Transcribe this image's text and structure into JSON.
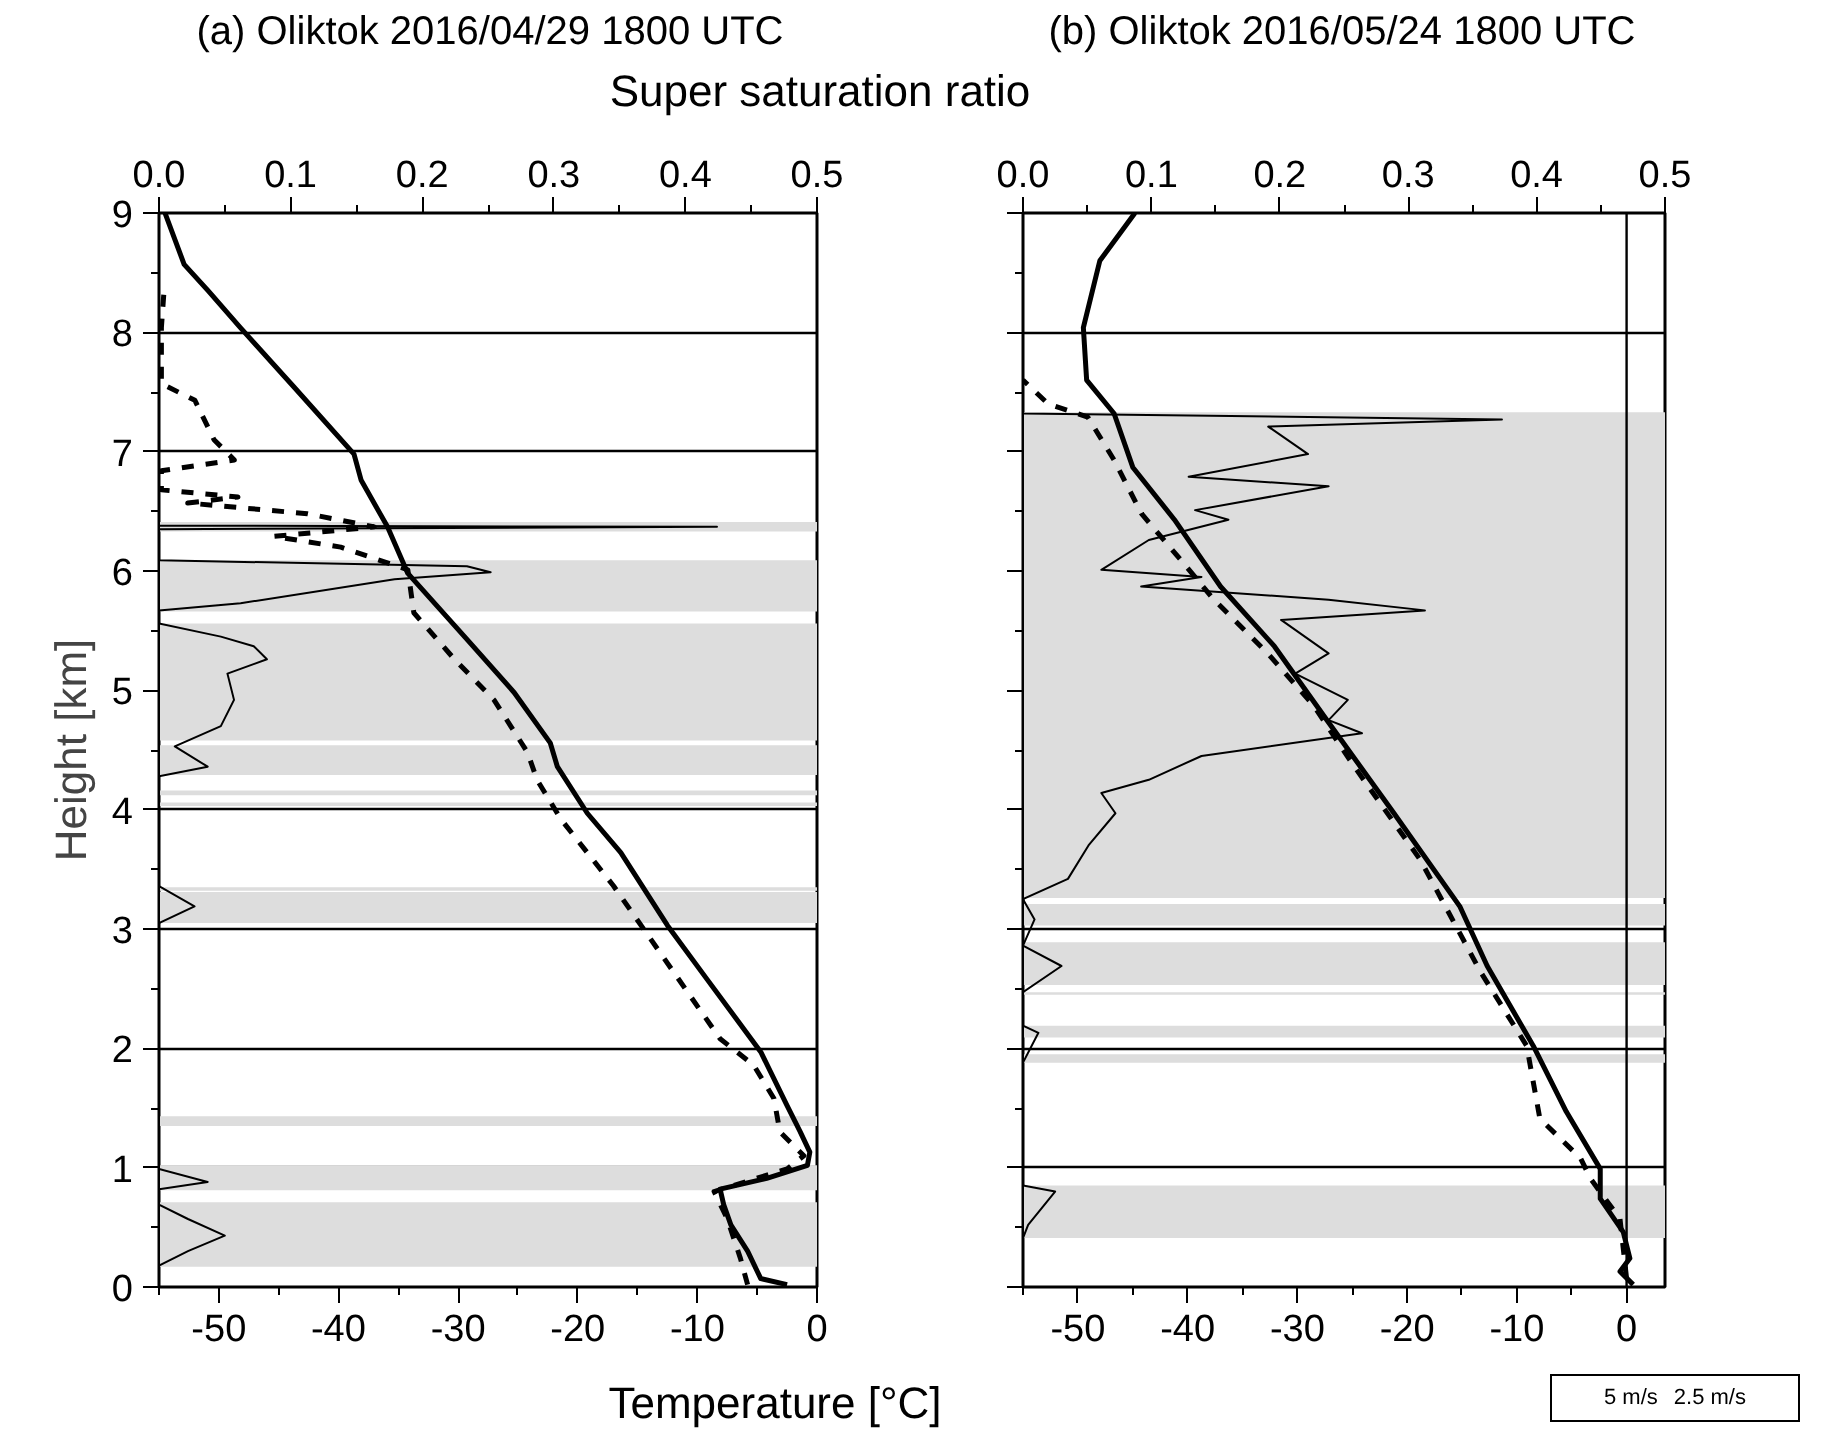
{
  "chart_data": [
    {
      "type": "line",
      "title": "(a) Oliktok 2016/04/29 1800 UTC",
      "xlabel": "Temperature [°C]",
      "x2label": "Super saturation ratio",
      "ylabel": "Height [km]",
      "xlim": [
        -55,
        0
      ],
      "xticks": [
        {
          "value": -55,
          "label": null
        },
        -50,
        {
          "value": -45,
          "label": null
        },
        -40,
        {
          "value": -35,
          "label": null
        },
        -30,
        {
          "value": -25,
          "label": null
        },
        -20,
        {
          "value": -15,
          "label": null
        },
        -10,
        {
          "value": -5,
          "label": null
        },
        0
      ],
      "x2lim": [
        0,
        0.5
      ],
      "x2ticks": [
        {
          "value": 0,
          "label": "0.0"
        },
        {
          "value": 0.05,
          "label": null
        },
        {
          "value": 0.1,
          "label": "0.1"
        },
        {
          "value": 0.15,
          "label": null
        },
        {
          "value": 0.2,
          "label": "0.2"
        },
        {
          "value": 0.25,
          "label": null
        },
        {
          "value": 0.3,
          "label": "0.3"
        },
        {
          "value": 0.35,
          "label": null
        },
        {
          "value": 0.4,
          "label": "0.4"
        },
        {
          "value": 0.45,
          "label": null
        },
        {
          "value": 0.5,
          "label": "0.5"
        }
      ],
      "ylim": [
        0,
        9
      ],
      "yticks": [
        0,
        {
          "value": 0.5,
          "label": null
        },
        1,
        {
          "value": 1.5,
          "label": null
        },
        2,
        {
          "value": 2.5,
          "label": null
        },
        3,
        {
          "value": 3.5,
          "label": null
        },
        4,
        {
          "value": 4.5,
          "label": null
        },
        5,
        {
          "value": 5.5,
          "label": null
        },
        6,
        {
          "value": 6.5,
          "label": null
        },
        7,
        {
          "value": 7.5,
          "label": null
        },
        8,
        {
          "value": 8.5,
          "label": null
        },
        9
      ],
      "grid": "y",
      "bands": [
        {
          "axis": "y",
          "from": 6.33,
          "to": 6.41,
          "color": "#dddddd"
        },
        {
          "axis": "y",
          "from": 5.66,
          "to": 6.09,
          "color": "#dddddd"
        },
        {
          "axis": "y",
          "from": 4.58,
          "to": 5.56,
          "color": "#dddddd"
        },
        {
          "axis": "y",
          "from": 4.29,
          "to": 4.54,
          "color": "#dddddd"
        },
        {
          "axis": "y",
          "from": 4.12,
          "to": 4.16,
          "color": "#dddddd"
        },
        {
          "axis": "y",
          "from": 4.03,
          "to": 4.06,
          "color": "#dddddd"
        },
        {
          "axis": "y",
          "from": 3.32,
          "to": 3.35,
          "color": "#dddddd"
        },
        {
          "axis": "y",
          "from": 3.05,
          "to": 3.31,
          "color": "#dddddd"
        },
        {
          "axis": "y",
          "from": 1.35,
          "to": 1.43,
          "color": "#dddddd"
        },
        {
          "axis": "y",
          "from": 0.81,
          "to": 1.02,
          "color": "#dddddd"
        },
        {
          "axis": "y",
          "from": 0.17,
          "to": 0.71,
          "color": "#dddddd"
        }
      ],
      "series": [
        {
          "color": "#000000",
          "line_style": "solid",
          "x": [
            -2.5,
            -4.7,
            -5.8,
            -7.2,
            -7.8,
            -8.1,
            -4.2,
            -0.8,
            -0.6,
            -1.4,
            -2.5,
            -4.7,
            -9.2,
            -12.5,
            -16.4,
            -19.2,
            -21.7,
            -22.3,
            -25.3,
            -29.2,
            -34.2,
            -35.9,
            -38.1,
            -38.7,
            -43.7,
            -48.2,
            -50.9,
            -52.9,
            -54.5
          ],
          "values": [
            0.02,
            0.07,
            0.3,
            0.52,
            0.69,
            0.82,
            0.91,
            1.02,
            1.13,
            1.3,
            1.52,
            1.97,
            2.58,
            3.03,
            3.64,
            3.97,
            4.36,
            4.56,
            4.98,
            5.42,
            5.98,
            6.37,
            6.76,
            6.98,
            7.54,
            8.04,
            8.35,
            8.57,
            9
          ]
        },
        {
          "color": "#000000",
          "line_style": "dashed",
          "x": [
            -5.8,
            -6.4,
            -7.5,
            -8.6,
            -2.5,
            -1.1,
            -3.1,
            -3.6,
            -5.3,
            -8.1,
            -13.1,
            -17.0,
            -21.4,
            -23.4,
            -24.2,
            -27.0,
            -30.3,
            -33.7,
            -34.2,
            -39.8,
            -45.4,
            -37.0,
            -42.6,
            -52.6,
            -48.4,
            -54.8,
            -54.8,
            -48.7,
            -50.4,
            -52.0,
            -54.8,
            -54.8,
            -54.6
          ],
          "values": [
            0.02,
            0.24,
            0.57,
            0.8,
            0.99,
            1.1,
            1.3,
            1.58,
            1.86,
            2.08,
            2.8,
            3.36,
            3.92,
            4.25,
            4.48,
            4.92,
            5.26,
            5.65,
            6.01,
            6.2,
            6.29,
            6.37,
            6.48,
            6.57,
            6.62,
            6.68,
            6.84,
            6.93,
            7.1,
            7.43,
            7.57,
            8.04,
            8.32
          ]
        },
        {
          "color": "#000000",
          "line_style": "solid",
          "axis": "x2",
          "x": [
            0,
            0,
            0.022,
            0.05,
            0.022,
            0,
            0,
            0.037,
            0,
            0,
            0,
            0.027,
            0,
            0,
            0.037,
            0.012,
            0.047,
            0.057,
            0.052,
            0.082,
            0.072,
            0.047,
            0,
            0,
            0.062,
            0.179,
            0.252,
            0.234,
            0,
            0,
            0.424,
            0,
            0
          ],
          "values": [
            0,
            0.18,
            0.3,
            0.43,
            0.57,
            0.69,
            0.82,
            0.88,
            0.99,
            1.41,
            3.05,
            3.19,
            3.36,
            4.28,
            4.36,
            4.53,
            4.7,
            4.92,
            5.14,
            5.26,
            5.37,
            5.45,
            5.56,
            5.67,
            5.73,
            5.93,
            5.99,
            6.04,
            6.09,
            6.35,
            6.37,
            6.38,
            9
          ]
        }
      ]
    },
    {
      "type": "line",
      "title": "(b) Oliktok 2016/05/24 1800 UTC",
      "tick_labels": "x",
      "xlim": [
        -55,
        3.5
      ],
      "xticks": [
        {
          "value": -55,
          "label": null
        },
        -50,
        {
          "value": -45,
          "label": null
        },
        -40,
        {
          "value": -35,
          "label": null
        },
        -30,
        {
          "value": -25,
          "label": null
        },
        -20,
        {
          "value": -15,
          "label": null
        },
        -10,
        {
          "value": -5,
          "label": null
        },
        0
      ],
      "x2lim": [
        0,
        0.5
      ],
      "x2ticks": [
        {
          "value": 0,
          "label": "0.0"
        },
        {
          "value": 0.05,
          "label": null
        },
        {
          "value": 0.1,
          "label": "0.1"
        },
        {
          "value": 0.15,
          "label": null
        },
        {
          "value": 0.2,
          "label": "0.2"
        },
        {
          "value": 0.25,
          "label": null
        },
        {
          "value": 0.3,
          "label": "0.3"
        },
        {
          "value": 0.35,
          "label": null
        },
        {
          "value": 0.4,
          "label": "0.4"
        },
        {
          "value": 0.45,
          "label": null
        },
        {
          "value": 0.5,
          "label": "0.5"
        }
      ],
      "ylim": [
        0,
        9
      ],
      "yticks": [
        0,
        {
          "value": 0.5,
          "label": null
        },
        1,
        {
          "value": 1.5,
          "label": null
        },
        2,
        {
          "value": 2.5,
          "label": null
        },
        3,
        {
          "value": 3.5,
          "label": null
        },
        4,
        {
          "value": 4.5,
          "label": null
        },
        5,
        {
          "value": 5.5,
          "label": null
        },
        6,
        {
          "value": 6.5,
          "label": null
        },
        7,
        {
          "value": 7.5,
          "label": null
        },
        8,
        {
          "value": 8.5,
          "label": null
        },
        9
      ],
      "grid": "y",
      "ref_lines": [
        {
          "axis": "x",
          "value": 0,
          "color": "#000000"
        }
      ],
      "bands": [
        {
          "axis": "y",
          "from": 3.26,
          "to": 7.33,
          "color": "#dddddd"
        },
        {
          "axis": "y",
          "from": 3.03,
          "to": 3.21,
          "color": "#dddddd"
        },
        {
          "axis": "y",
          "from": 2.53,
          "to": 2.89,
          "color": "#dddddd"
        },
        {
          "axis": "y",
          "from": 2.45,
          "to": 2.47,
          "color": "#dddddd"
        },
        {
          "axis": "y",
          "from": 2.09,
          "to": 2.19,
          "color": "#dddddd"
        },
        {
          "axis": "y",
          "from": 1.88,
          "to": 1.95,
          "color": "#dddddd"
        },
        {
          "axis": "y",
          "from": 0.41,
          "to": 0.85,
          "color": "#dddddd"
        }
      ],
      "annotations": [
        "5 m/s",
        "2.5 m/s"
      ],
      "series": [
        {
          "color": "#000000",
          "line_style": "solid",
          "x": [
            0.6,
            -0.6,
            0.3,
            -0.3,
            -2.4,
            -2.4,
            -5.5,
            -8.5,
            -12.7,
            -15.2,
            -21.2,
            -27.3,
            -32.1,
            -37.0,
            -41.2,
            -45.0,
            -46.7,
            -49.2,
            -49.5,
            -48.0,
            -44.8
          ],
          "values": [
            0.02,
            0.13,
            0.24,
            0.46,
            0.74,
            0.99,
            1.47,
            2.02,
            2.69,
            3.19,
            3.97,
            4.75,
            5.37,
            5.87,
            6.43,
            6.87,
            7.32,
            7.6,
            8.04,
            8.6,
            9
          ]
        },
        {
          "color": "#000000",
          "line_style": "dashed",
          "x": [
            0.0,
            -0.6,
            -3.3,
            -4.2,
            -7.9,
            -9.1,
            -13.3,
            -18.8,
            -24.8,
            -28.5,
            -32.7,
            -37.6,
            -40.6,
            -44.2,
            -46.7,
            -49.1,
            -52.7,
            -55.0
          ],
          "values": [
            0.07,
            0.57,
            0.91,
            1.08,
            1.41,
            2.02,
            2.64,
            3.58,
            4.36,
            4.87,
            5.31,
            5.76,
            6.09,
            6.48,
            6.93,
            7.29,
            7.4,
            7.6
          ]
        },
        {
          "color": "#000000",
          "line_style": "solid",
          "axis": "x2",
          "x": [
            0,
            0,
            0.004,
            0.025,
            0,
            0,
            0.012,
            0,
            0,
            0.03,
            0,
            0.009,
            0,
            0.035,
            0.051,
            0.072,
            0.061,
            0.098,
            0.139,
            0.264,
            0.238,
            0.253,
            0.212,
            0.238,
            0.201,
            0.313,
            0.238,
            0.092,
            0.139,
            0.061,
            0.098,
            0.16,
            0.134,
            0.238,
            0.129,
            0.222,
            0.191,
            0.373,
            0,
            0
          ],
          "values": [
            0,
            0.41,
            0.52,
            0.8,
            0.85,
            1.88,
            2.13,
            2.19,
            2.47,
            2.69,
            2.86,
            3.08,
            3.25,
            3.42,
            3.7,
            3.97,
            4.14,
            4.25,
            4.45,
            4.64,
            4.75,
            4.92,
            5.14,
            5.31,
            5.59,
            5.67,
            5.76,
            5.87,
            5.95,
            6.01,
            6.26,
            6.43,
            6.51,
            6.71,
            6.79,
            6.98,
            7.21,
            7.27,
            7.32,
            9
          ]
        }
      ]
    }
  ]
}
